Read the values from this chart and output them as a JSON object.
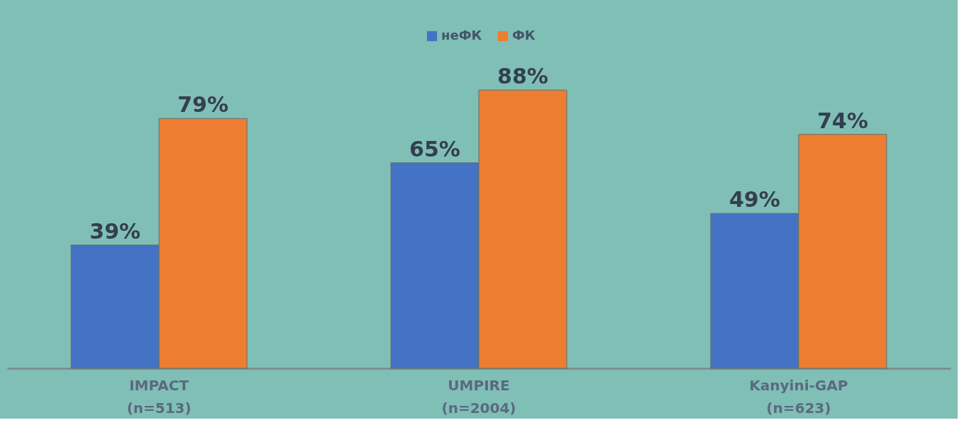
{
  "chart_data": {
    "type": "bar",
    "categories": [
      "IMPACT\n(n=513)",
      "UMPIRE\n(n=2004)",
      "Kanyini-GAP\n(n=623)"
    ],
    "series": [
      {
        "name": "неФК",
        "color": "#4472c4",
        "values": [
          39,
          65,
          49
        ],
        "value_labels": [
          "39%",
          "65%",
          "49%"
        ]
      },
      {
        "name": "ФК",
        "color": "#ed7d31",
        "values": [
          79,
          88,
          74
        ],
        "value_labels": [
          "79%",
          "88%",
          "74%"
        ]
      }
    ],
    "legend": "top",
    "grid": false
  }
}
